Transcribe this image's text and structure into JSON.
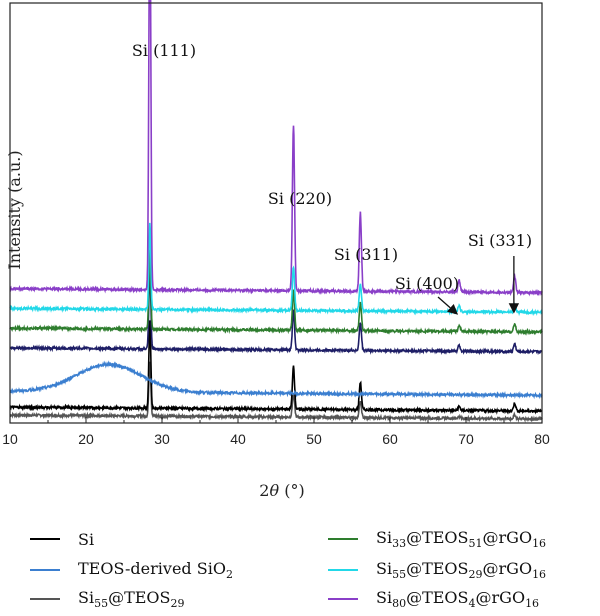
{
  "chart_data": {
    "type": "line",
    "title": "",
    "xlabel": "2θ (°)",
    "ylabel": "Intensity (a.u.)",
    "xlim": [
      10,
      80
    ],
    "xticks": [
      "10",
      "20",
      "30",
      "40",
      "50",
      "60",
      "70",
      "80"
    ],
    "yticks": [],
    "grid": false,
    "legend_placement": "bottom",
    "peaks": [
      28.4,
      47.3,
      56.1,
      69.1,
      76.4
    ],
    "annotations": [
      {
        "text": "Si (111)",
        "x": 28.4
      },
      {
        "text": "Si (220)",
        "x": 47.3
      },
      {
        "text": "Si (311)",
        "x": 56.1
      },
      {
        "text": "Si (400)",
        "x": 69.1
      },
      {
        "text": "Si (331)",
        "x": 76.4
      }
    ],
    "series": [
      {
        "name": "Si",
        "label_main": "Si",
        "label_parts": [
          [
            "Si",
            ""
          ]
        ],
        "color": "#000000",
        "baseline": 0.02,
        "peak_heights": [
          0.22,
          0.11,
          0.07,
          0.01,
          0.02
        ],
        "hump": 0.0
      },
      {
        "name": "TEOS-derived SiO2",
        "label_parts": [
          [
            "TEOS-derived SiO",
            "2"
          ]
        ],
        "color": "#3b7fd0",
        "baseline": 0.06,
        "peak_heights": [
          0.0,
          0.0,
          0.0,
          0.0,
          0.0
        ],
        "hump": 0.07
      },
      {
        "name": "Si55@TEOS29",
        "label_parts": [
          [
            "Si",
            "55"
          ],
          [
            "@TEOS",
            "29"
          ]
        ],
        "color": "#555555",
        "baseline": 0.0,
        "peak_heights": [
          0.14,
          0.06,
          0.04,
          0.005,
          0.01
        ],
        "hump": 0.0
      },
      {
        "name": "Si33@TEOS51@rGO16",
        "label_parts": [
          [
            "Si",
            "33"
          ],
          [
            "@TEOS",
            "51"
          ],
          [
            "@rGO",
            "16"
          ]
        ],
        "color": "#2e7d2e",
        "baseline": 0.22,
        "peak_heights": [
          0.2,
          0.1,
          0.07,
          0.015,
          0.02
        ],
        "hump": 0.0
      },
      {
        "name": "Si55@TEOS29@rGO16",
        "label_parts": [
          [
            "Si",
            "55"
          ],
          [
            "@TEOS",
            "29"
          ],
          [
            "@rGO",
            "16"
          ]
        ],
        "color": "#22d8e8",
        "baseline": 0.27,
        "peak_heights": [
          0.22,
          0.11,
          0.07,
          0.015,
          0.02
        ],
        "hump": 0.0
      },
      {
        "name": "Si80@TEOS4@rGO16",
        "label_parts": [
          [
            "Si",
            "80"
          ],
          [
            "@TEOS",
            "4"
          ],
          [
            "@rGO",
            "16"
          ]
        ],
        "color": "#8a3fc8",
        "baseline": 0.32,
        "peak_heights": [
          1.02,
          0.42,
          0.2,
          0.03,
          0.04
        ],
        "hump": 0.0
      },
      {
        "name": "Si (navy)",
        "label_parts": [],
        "color": "#1e1e66",
        "baseline": 0.17,
        "peak_heights": [
          0.2,
          0.1,
          0.07,
          0.015,
          0.02
        ],
        "hump": 0.0
      }
    ]
  }
}
